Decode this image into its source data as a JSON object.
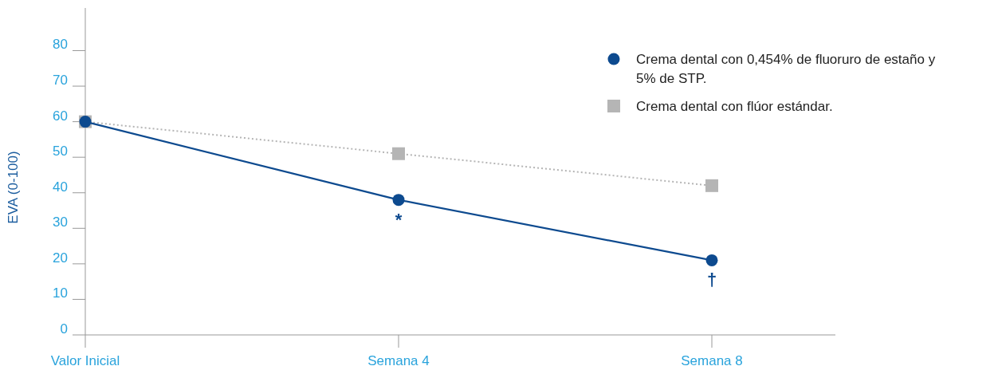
{
  "chart_data": {
    "type": "line",
    "ylabel": "EVA (0-100)",
    "categories": [
      "Valor Inicial",
      "Semana 4",
      "Semana 8"
    ],
    "series": [
      {
        "name": "Crema dental con 0,454% de fluoruro de estaño y 5% de STP.",
        "color": "#0d4a8f",
        "values": [
          60,
          38,
          21
        ],
        "marker": "circle",
        "line_style": "solid"
      },
      {
        "name": "Crema dental con flúor estándar.",
        "color": "#b5b5b5",
        "values": [
          60,
          51,
          42
        ],
        "marker": "square",
        "line_style": "dotted"
      }
    ],
    "ylim": [
      0,
      92
    ],
    "yticks": [
      0,
      10,
      20,
      30,
      40,
      50,
      60,
      70,
      80
    ],
    "grid": false,
    "legend": "top right",
    "annotations": [
      {
        "text": "*",
        "x": "Semana 4",
        "y": 38
      },
      {
        "text": "†",
        "x": "Semana 8",
        "y": 21
      }
    ]
  }
}
